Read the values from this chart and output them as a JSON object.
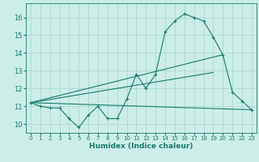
{
  "title": "",
  "xlabel": "Humidex (Indice chaleur)",
  "ylabel": "",
  "bg_color": "#cceee8",
  "grid_color": "#aad8d0",
  "line_color": "#1a7a6a",
  "xlim": [
    -0.5,
    23.5
  ],
  "ylim": [
    9.5,
    16.8
  ],
  "yticks": [
    10,
    11,
    12,
    13,
    14,
    15,
    16
  ],
  "xticks": [
    0,
    1,
    2,
    3,
    4,
    5,
    6,
    7,
    8,
    9,
    10,
    11,
    12,
    13,
    14,
    15,
    16,
    17,
    18,
    19,
    20,
    21,
    22,
    23
  ],
  "series1_x": [
    0,
    1,
    2,
    3,
    4,
    5,
    6,
    7,
    8,
    9,
    10,
    11,
    12,
    13,
    14,
    15,
    16,
    17,
    18,
    19,
    20,
    21,
    22,
    23
  ],
  "series1_y": [
    11.2,
    11.0,
    10.9,
    10.9,
    10.3,
    9.8,
    10.5,
    11.0,
    10.3,
    10.3,
    11.4,
    12.8,
    12.0,
    12.8,
    15.2,
    15.8,
    16.2,
    16.0,
    15.8,
    14.9,
    13.9,
    11.8,
    11.3,
    10.8
  ],
  "series2_x": [
    0,
    23
  ],
  "series2_y": [
    11.2,
    10.8
  ],
  "series3_x": [
    0,
    20
  ],
  "series3_y": [
    11.2,
    13.9
  ],
  "series4_x": [
    0,
    19
  ],
  "series4_y": [
    11.2,
    12.9
  ]
}
